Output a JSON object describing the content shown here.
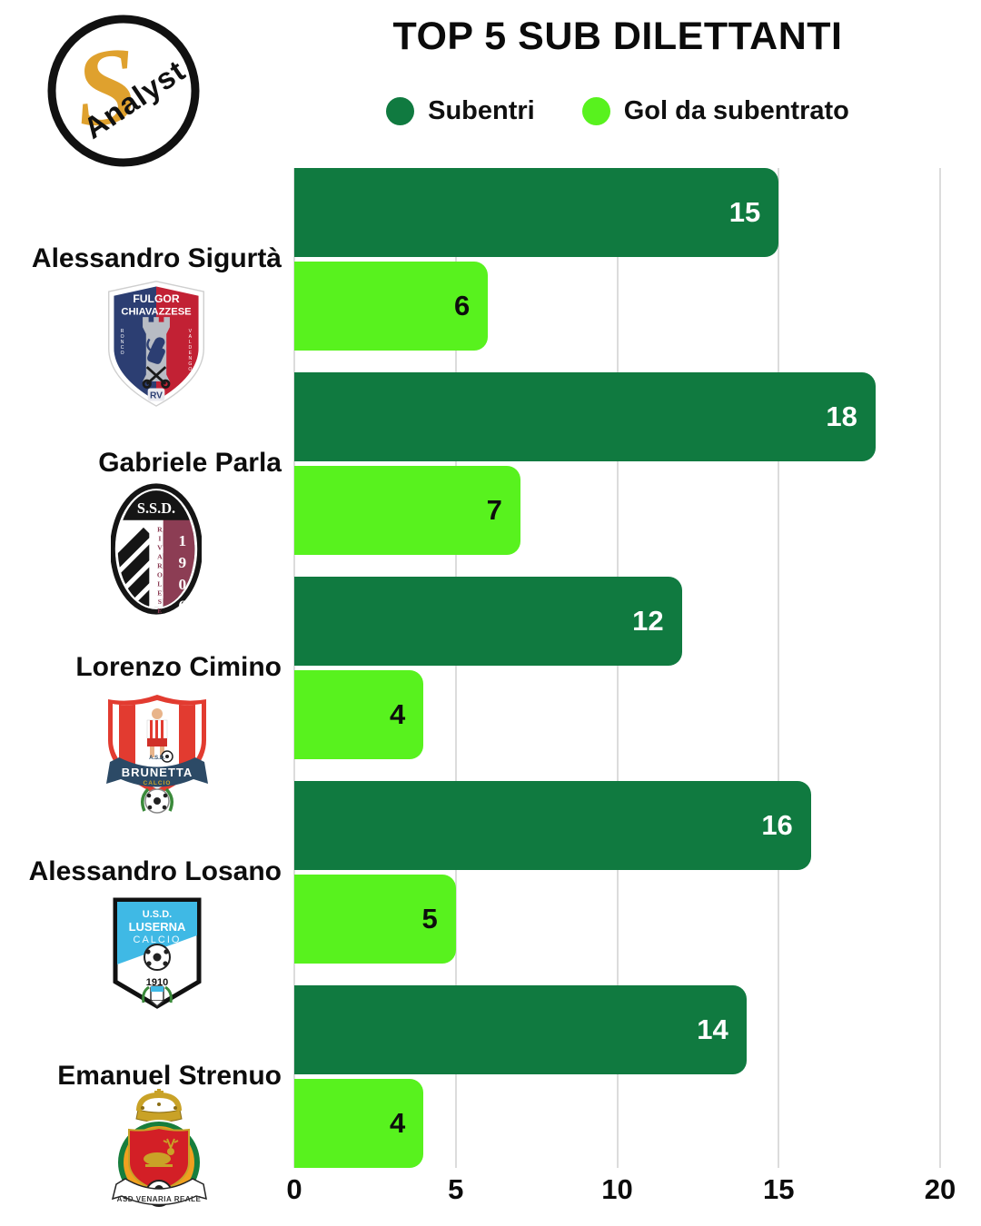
{
  "brand": {
    "letter": "S",
    "name": "Analyst"
  },
  "title": "TOP 5 SUB DILETTANTI",
  "legend": [
    {
      "label": "Subentri",
      "color": "#107A40"
    },
    {
      "label": "Gol da subentrato",
      "color": "#58F21E"
    }
  ],
  "players": [
    {
      "name": "Alessandro Sigurtà",
      "logo": {
        "line1": "FULGOR",
        "line2": "CHIAVAZZESE",
        "side_left": "RONCO",
        "side_right": "VALDENGO",
        "initials": "RV"
      }
    },
    {
      "name": "Gabriele Parla",
      "logo": {
        "top": "S.S.D.",
        "vertical": "RIVAROLESE",
        "year": "1906"
      }
    },
    {
      "name": "Lorenzo Cimino",
      "logo": {
        "small": "A.S.D.",
        "banner": "BRUNETTA",
        "sub": "CALCIO"
      }
    },
    {
      "name": "Alessandro Losano",
      "logo": {
        "line1": "U.S.D.",
        "line2": "LUSERNA",
        "line3": "CALCIO",
        "year": "1910"
      }
    },
    {
      "name": "Emanuel Strenuo",
      "logo": {
        "banner": "ASD VENARIA REALE"
      }
    }
  ],
  "chart_data": {
    "type": "bar",
    "orientation": "horizontal",
    "title": "TOP 5 SUB DILETTANTI",
    "categories": [
      "Alessandro Sigurtà",
      "Gabriele Parla",
      "Lorenzo Cimino",
      "Alessandro Losano",
      "Emanuel Strenuo"
    ],
    "series": [
      {
        "name": "Subentri",
        "color": "#107A40",
        "label_color": "#FFFFFF",
        "values": [
          15,
          18,
          12,
          16,
          14
        ]
      },
      {
        "name": "Gol da subentrato",
        "color": "#58F21E",
        "label_color": "#0D0D0D",
        "values": [
          6,
          7,
          4,
          5,
          4
        ]
      }
    ],
    "xlim": [
      0,
      20
    ],
    "x_ticks": [
      0,
      5,
      10,
      15,
      20
    ],
    "grid": true,
    "legend_position": "top"
  }
}
